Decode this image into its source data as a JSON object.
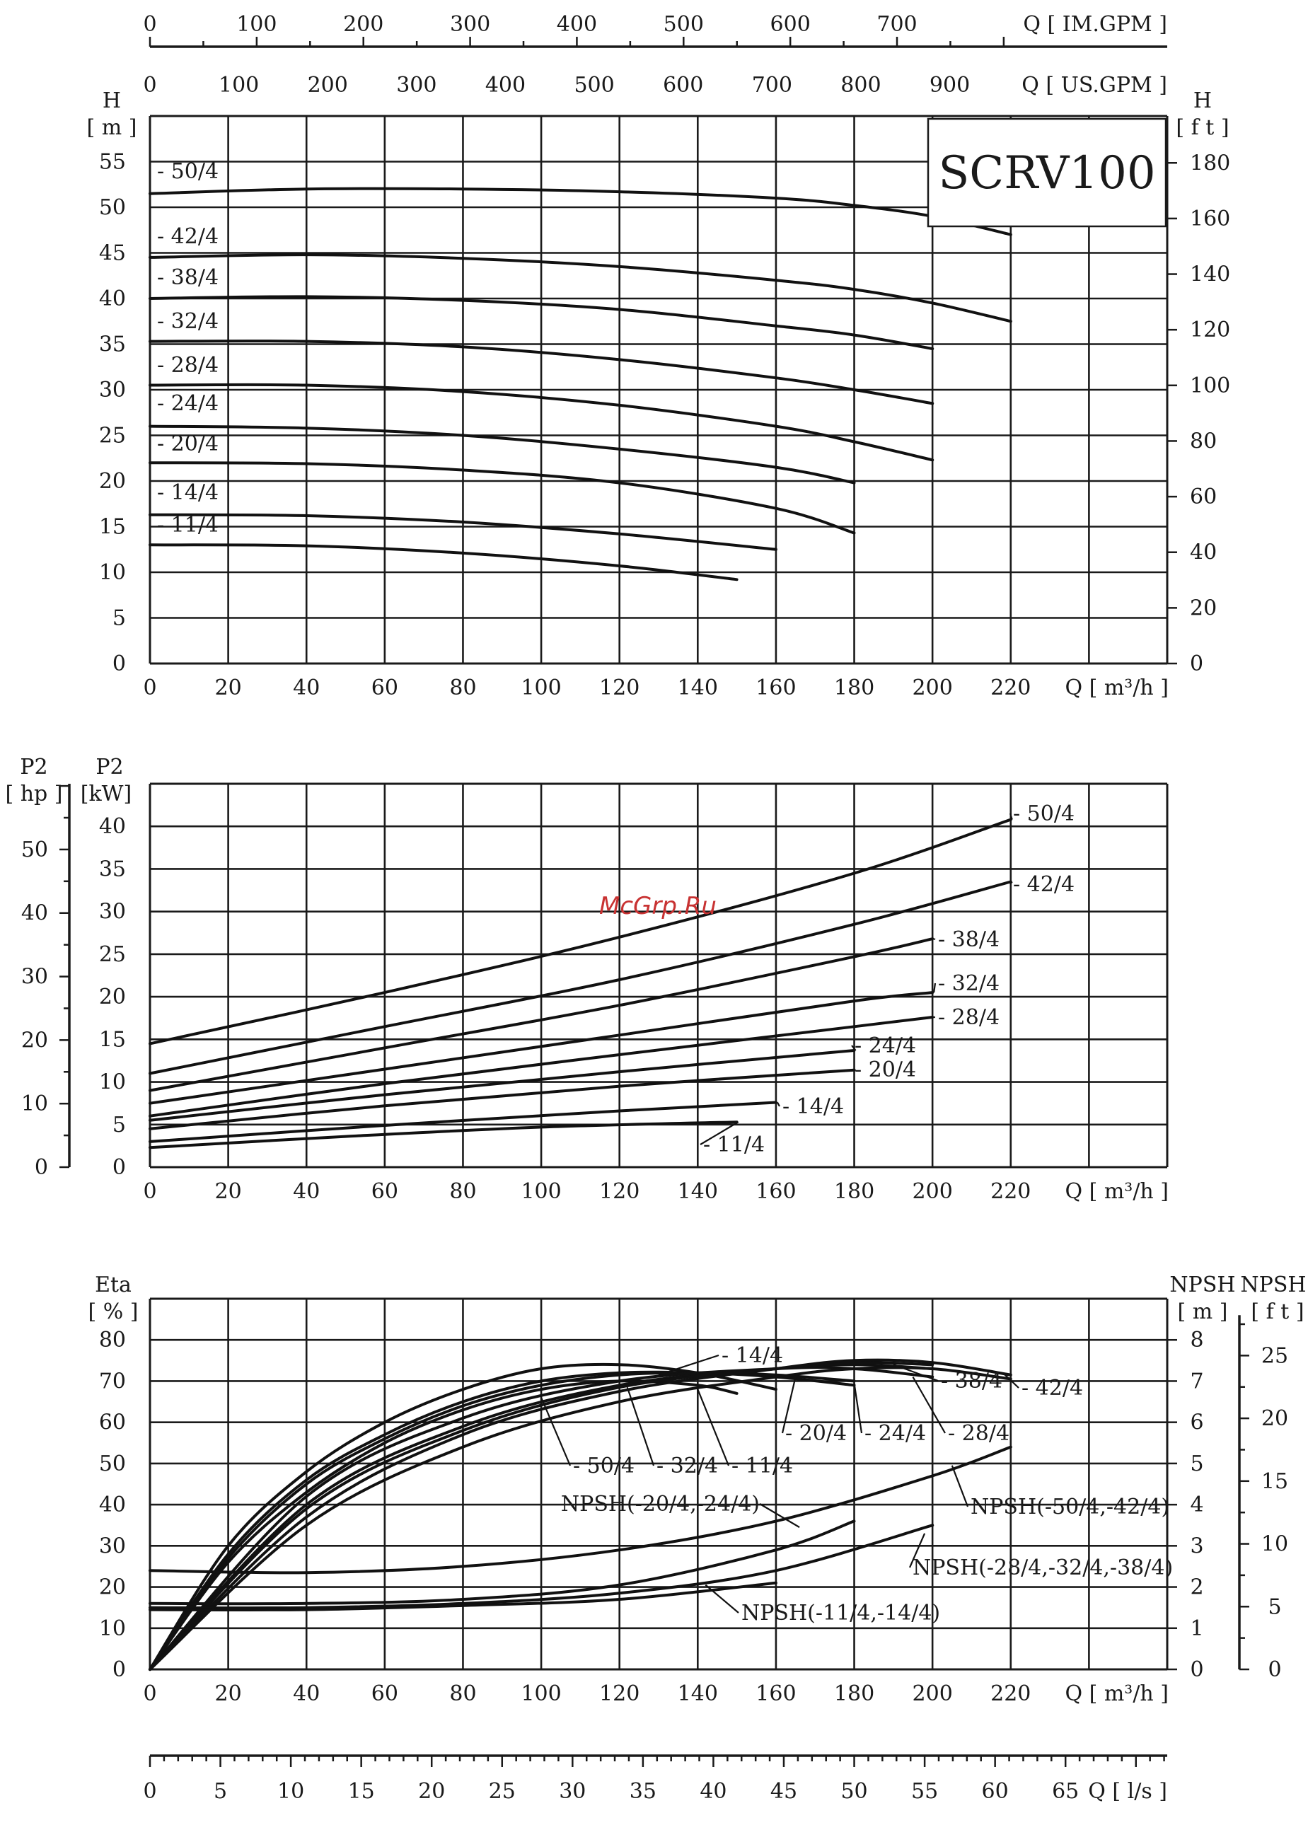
{
  "watermark": "McGrp.Ru",
  "chart_data": [
    {
      "panel": "head",
      "type": "line",
      "title": "SCRV100",
      "ylabel": "H",
      "yunit": "[ m ]",
      "y2label": "H",
      "y2unit": "[ f t ]",
      "xlabel": "Q [ m³/h ]",
      "xlim": [
        0,
        260
      ],
      "ylim": [
        0,
        60
      ],
      "x_ticks": [
        0,
        20,
        40,
        60,
        80,
        100,
        120,
        140,
        160,
        180,
        200,
        220
      ],
      "y_ticks": [
        0,
        5,
        10,
        15,
        20,
        25,
        30,
        35,
        40,
        45,
        50,
        55
      ],
      "y2_ticks": [
        0,
        20,
        40,
        60,
        80,
        100,
        120,
        140,
        160,
        180
      ],
      "top_axis_us": {
        "label": "Q [ US.GPM ]",
        "ticks": [
          0,
          100,
          200,
          300,
          400,
          500,
          600,
          700,
          800,
          900
        ]
      },
      "top_axis_im": {
        "label": "Q [ IM.GPM ]",
        "ticks": [
          0,
          100,
          200,
          300,
          400,
          500,
          600,
          700
        ]
      },
      "grid": true,
      "series": [
        {
          "name": "- 50/4",
          "x": [
            0,
            40,
            80,
            120,
            160,
            180,
            200,
            220
          ],
          "y": [
            51.5,
            52,
            52,
            51.7,
            51,
            50.2,
            49,
            47
          ]
        },
        {
          "name": "- 42/4",
          "x": [
            0,
            40,
            80,
            120,
            160,
            180,
            200,
            220
          ],
          "y": [
            44.5,
            44.8,
            44.4,
            43.5,
            42,
            41,
            39.5,
            37.5
          ]
        },
        {
          "name": "- 38/4",
          "x": [
            0,
            40,
            80,
            120,
            160,
            180,
            200
          ],
          "y": [
            40,
            40.2,
            39.8,
            38.8,
            37,
            36,
            34.5
          ]
        },
        {
          "name": "- 32/4",
          "x": [
            0,
            40,
            80,
            120,
            160,
            180,
            200
          ],
          "y": [
            35.3,
            35.3,
            34.7,
            33.3,
            31.3,
            30,
            28.5
          ]
        },
        {
          "name": "- 28/4",
          "x": [
            0,
            40,
            80,
            120,
            160,
            180,
            200
          ],
          "y": [
            30.5,
            30.5,
            29.8,
            28.3,
            26,
            24.3,
            22.3
          ]
        },
        {
          "name": "- 24/4",
          "x": [
            0,
            40,
            80,
            120,
            160,
            180
          ],
          "y": [
            26,
            25.8,
            25,
            23.5,
            21.5,
            19.8
          ]
        },
        {
          "name": "- 20/4",
          "x": [
            0,
            40,
            80,
            120,
            160,
            180
          ],
          "y": [
            22,
            21.9,
            21.2,
            19.8,
            17,
            14.3
          ]
        },
        {
          "name": "- 14/4",
          "x": [
            0,
            40,
            80,
            120,
            160
          ],
          "y": [
            16.3,
            16.2,
            15.5,
            14.2,
            12.5
          ]
        },
        {
          "name": "- 11/4",
          "x": [
            0,
            40,
            80,
            120,
            150
          ],
          "y": [
            13,
            12.9,
            12.1,
            10.7,
            9.2
          ]
        }
      ]
    },
    {
      "panel": "power",
      "type": "line",
      "ylabel": "P2",
      "yunit": "[kW]",
      "y3label": "P2",
      "y3unit": "[ hp ]",
      "xlabel": "Q [ m³/h ]",
      "xlim": [
        0,
        260
      ],
      "ylim": [
        0,
        45
      ],
      "x_ticks": [
        0,
        20,
        40,
        60,
        80,
        100,
        120,
        140,
        160,
        180,
        200,
        220
      ],
      "y_ticks": [
        0,
        5,
        10,
        15,
        20,
        25,
        30,
        35,
        40
      ],
      "y3_ticks": [
        0,
        10,
        20,
        30,
        40,
        50
      ],
      "grid": true,
      "series": [
        {
          "name": "- 50/4",
          "x": [
            0,
            60,
            120,
            180,
            220
          ],
          "y": [
            14.5,
            20.5,
            27,
            34.5,
            40.8
          ]
        },
        {
          "name": "- 42/4",
          "x": [
            0,
            60,
            120,
            180,
            220
          ],
          "y": [
            11,
            16.5,
            22,
            28.5,
            33.5
          ]
        },
        {
          "name": "- 38/4",
          "x": [
            0,
            60,
            120,
            180,
            200
          ],
          "y": [
            9,
            14,
            19,
            24.7,
            26.8
          ]
        },
        {
          "name": "- 32/4",
          "x": [
            0,
            60,
            120,
            180,
            200
          ],
          "y": [
            7.5,
            11.5,
            15.5,
            19.5,
            20.5
          ]
        },
        {
          "name": "- 28/4",
          "x": [
            0,
            60,
            120,
            180,
            200
          ],
          "y": [
            6,
            9.8,
            13.2,
            16.5,
            17.6
          ]
        },
        {
          "name": "- 24/4",
          "x": [
            0,
            60,
            120,
            180
          ],
          "y": [
            5.5,
            8.5,
            11.2,
            13.7
          ]
        },
        {
          "name": "- 20/4",
          "x": [
            0,
            60,
            120,
            180
          ],
          "y": [
            4.5,
            7.2,
            9.5,
            11.4
          ]
        },
        {
          "name": "- 14/4",
          "x": [
            0,
            60,
            120,
            160
          ],
          "y": [
            3,
            4.9,
            6.6,
            7.6
          ]
        },
        {
          "name": "- 11/4",
          "x": [
            0,
            50,
            100,
            150
          ],
          "y": [
            2.3,
            3.6,
            4.7,
            5.3
          ]
        }
      ]
    },
    {
      "panel": "efficiency",
      "type": "line",
      "ylabel": "Eta",
      "yunit": "[ % ]",
      "y2label": "NPSH",
      "y2unit": "[ m ]",
      "y3label": "NPSH",
      "y3unit": "[ f t ]",
      "xlabel": "Q [ m³/h ]",
      "xlim": [
        0,
        260
      ],
      "ylim": [
        0,
        90
      ],
      "x_ticks": [
        0,
        20,
        40,
        60,
        80,
        100,
        120,
        140,
        160,
        180,
        200,
        220
      ],
      "y_ticks": [
        0,
        10,
        20,
        30,
        40,
        50,
        60,
        70,
        80
      ],
      "y2_ticks": [
        0,
        1,
        2,
        3,
        4,
        5,
        6,
        7,
        8
      ],
      "y3_ticks": [
        0,
        5,
        10,
        15,
        20,
        25
      ],
      "bottom_axis_ls": {
        "label": "Q [ l/s ]",
        "ticks": [
          0,
          5,
          10,
          15,
          20,
          25,
          30,
          35,
          40,
          45,
          50,
          55,
          60,
          65
        ]
      },
      "grid": true,
      "eta_series": [
        {
          "name": "- 14/4",
          "x": [
            0,
            20,
            40,
            60,
            80,
            100,
            120,
            140,
            160
          ],
          "y": [
            0,
            30,
            48,
            60,
            68,
            73,
            74,
            72,
            68
          ]
        },
        {
          "name": "- 11/4",
          "x": [
            0,
            20,
            40,
            60,
            80,
            100,
            120,
            140,
            150
          ],
          "y": [
            0,
            26,
            43,
            55,
            63,
            68,
            70,
            69,
            67
          ]
        },
        {
          "name": "- 20/4",
          "x": [
            0,
            20,
            40,
            60,
            80,
            100,
            120,
            140,
            160,
            180
          ],
          "y": [
            0,
            28,
            46,
            57,
            65,
            70,
            72,
            72,
            71,
            69
          ]
        },
        {
          "name": "- 24/4",
          "x": [
            0,
            20,
            40,
            60,
            80,
            100,
            120,
            140,
            160,
            180
          ],
          "y": [
            0,
            27,
            45,
            56,
            64,
            69,
            71.5,
            72,
            71.5,
            70
          ]
        },
        {
          "name": "- 28/4",
          "x": [
            0,
            40,
            80,
            120,
            160,
            180,
            200
          ],
          "y": [
            0,
            42,
            61,
            70,
            73,
            73,
            71
          ]
        },
        {
          "name": "- 32/4",
          "x": [
            0,
            40,
            80,
            120,
            160,
            180,
            200
          ],
          "y": [
            0,
            40,
            59,
            69,
            73,
            74,
            73
          ]
        },
        {
          "name": "- 38/4",
          "x": [
            0,
            40,
            80,
            120,
            160,
            180,
            200
          ],
          "y": [
            0,
            39,
            58,
            68.5,
            73,
            74.5,
            74
          ]
        },
        {
          "name": "- 50/4",
          "x": [
            0,
            40,
            80,
            120,
            160,
            180,
            200,
            220
          ],
          "y": [
            0,
            35,
            54,
            65,
            71,
            73,
            73,
            70.5
          ]
        },
        {
          "name": "- 42/4",
          "x": [
            0,
            40,
            80,
            120,
            160,
            180,
            200,
            220
          ],
          "y": [
            0,
            37,
            57,
            67.5,
            73,
            75,
            74.5,
            71.5
          ]
        }
      ],
      "npsh_series": [
        {
          "name": "NPSH(-50/4,-42/4)",
          "x": [
            0,
            40,
            80,
            120,
            160,
            200,
            220
          ],
          "y": [
            2.4,
            2.35,
            2.5,
            2.9,
            3.6,
            4.7,
            5.4
          ]
        },
        {
          "name": "NPSH(-20/4,-24/4)",
          "x": [
            0,
            40,
            80,
            120,
            160,
            180
          ],
          "y": [
            1.6,
            1.6,
            1.7,
            2.05,
            2.9,
            3.6
          ]
        },
        {
          "name": "NPSH(-28/4,-32/4,-38/4)",
          "x": [
            0,
            40,
            80,
            120,
            160,
            200
          ],
          "y": [
            1.5,
            1.5,
            1.6,
            1.85,
            2.4,
            3.5
          ]
        },
        {
          "name": "NPSH(-11/4,-14/4)",
          "x": [
            0,
            40,
            80,
            120,
            160
          ],
          "y": [
            1.45,
            1.45,
            1.55,
            1.7,
            2.1
          ]
        }
      ]
    }
  ]
}
